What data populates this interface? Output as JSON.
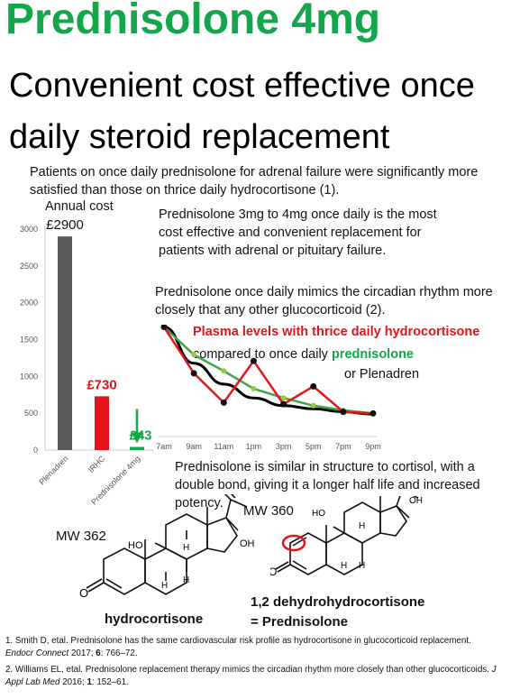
{
  "header": {
    "title": "Prednisolone 4mg",
    "subtitle_line1": "Convenient cost effective once",
    "subtitle_line2": "daily steroid replacement"
  },
  "intro": "Patients on once daily prednisolone for adrenal failure were significantly more satisfied than those on thrice daily hydrocortisone (1).",
  "bar_chart": {
    "caption": "Annual cost",
    "y_ticks": [
      "0",
      "500",
      "1000",
      "1500",
      "2000",
      "2500",
      "3000"
    ],
    "bar_labels": [
      "£2900",
      "£730",
      "£43"
    ],
    "categories": [
      "Plenadren",
      "IRHC",
      "Prednisolone 4mg"
    ]
  },
  "chart_data": [
    {
      "type": "bar",
      "categories": [
        "Plenadren",
        "IRHC",
        "Prednisolone 4mg"
      ],
      "values": [
        2900,
        730,
        43
      ],
      "colors": [
        "#595959",
        "#e3151a",
        "#13a64a"
      ],
      "title": "Annual cost",
      "ylim": [
        0,
        3000
      ]
    },
    {
      "type": "line",
      "x": [
        "7am",
        "9am",
        "11am",
        "1pm",
        "3pm",
        "5pm",
        "7pm",
        "9pm"
      ],
      "series": [
        {
          "name": "Plasma levels with thrice daily hydrocortisone",
          "color": "#e3151a",
          "values": [
            1420,
            820,
            440,
            980,
            420,
            650,
            320,
            300
          ]
        },
        {
          "name": "once daily prednisolone",
          "color": "#3aa845",
          "values": [
            1420,
            1060,
            850,
            620,
            500,
            400,
            340,
            300
          ]
        },
        {
          "name": "Plenadren",
          "color": "#000000",
          "values": [
            1420,
            950,
            680,
            500,
            400,
            360,
            320,
            290
          ]
        }
      ],
      "ylim": [
        0,
        3000
      ]
    }
  ],
  "text_blocks": {
    "most_effective": "Prednisolone 3mg to 4mg once daily is the most cost effective and convenient replacement for patients with adrenal or pituitary failure.",
    "mimics": "Prednisolone once daily mimics the circadian rhythm more closely that any other glucocorticoid (2).",
    "legend_red": "Plasma levels with thrice daily hydrocortisone",
    "legend_compared": "compared to once daily",
    "legend_green": "prednisolone",
    "legend_black": "or Plenadren",
    "similar": "Prednisolone is similar in structure to cortisol, with a double bond, giving it a longer half life and increased potency."
  },
  "structures": {
    "hc_mw": "MW 362",
    "hc_name": "hydrocortisone",
    "pred_mw": "MW 360",
    "pred_name_line1": "1,2 dehydrohydrocortisone",
    "pred_name_line2": "= Prednisolone",
    "atoms": {
      "oh": "OH",
      "ho": "HO",
      "o": "O",
      "h": "H"
    }
  },
  "references": {
    "ref1_text": "1. Smith D, etal. Prednisolone has the same cardiovascular risk profile as hydrocortisone in glucocorticoid replacement.",
    "ref1_journal": "Endocr Connect",
    "ref1_tail": " 2017; ",
    "ref1_vol": "6",
    "ref1_pages": ": 766–72.",
    "ref2_text": "2. Williams EL, etal. Prednisolone replacement therapy mimics the circadian rhythm more closely than other glucocorticoids. ",
    "ref2_journal": "J Appl Lab Med",
    "ref2_tail": " 2016; ",
    "ref2_vol": "1",
    "ref2_pages": ": 152–61."
  }
}
